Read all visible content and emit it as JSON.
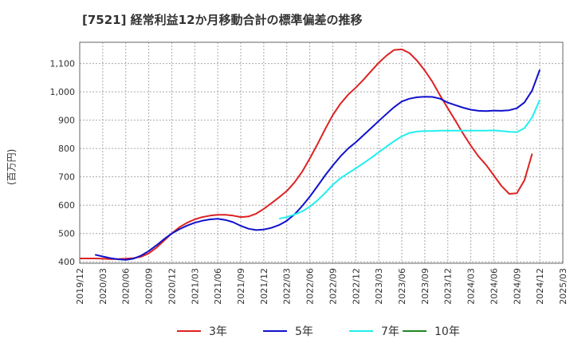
{
  "title": "[7521]  経常利益12か月移動合計の標準偏差の推移",
  "chart_data": {
    "type": "line",
    "ylabel": "(百万円)",
    "xlabel": "",
    "ylim": [
      395,
      1175
    ],
    "yticks": [
      400,
      500,
      600,
      700,
      800,
      900,
      1000,
      1100
    ],
    "ytick_labels": [
      "400",
      "500",
      "600",
      "700",
      "800",
      "900",
      "1,000",
      "1,100"
    ],
    "xticks": [
      "2019/12",
      "2020/03",
      "2020/06",
      "2020/09",
      "2020/12",
      "2021/03",
      "2021/06",
      "2021/09",
      "2021/12",
      "2022/03",
      "2022/06",
      "2022/09",
      "2022/12",
      "2023/03",
      "2023/06",
      "2023/09",
      "2023/12",
      "2024/03",
      "2024/06",
      "2024/09",
      "2024/12",
      "2025/03"
    ],
    "grid": true,
    "legend_position": "bottom",
    "series": [
      {
        "name": "3年",
        "color": "#dd2222",
        "points": [
          [
            "2019/12",
            412
          ],
          [
            "2020/01",
            412
          ],
          [
            "2020/02",
            412
          ],
          [
            "2020/03",
            411
          ],
          [
            "2020/04",
            410
          ],
          [
            "2020/05",
            410
          ],
          [
            "2020/06",
            411
          ],
          [
            "2020/07",
            413
          ],
          [
            "2020/08",
            418
          ],
          [
            "2020/09",
            430
          ],
          [
            "2020/10",
            450
          ],
          [
            "2020/11",
            475
          ],
          [
            "2020/12",
            500
          ],
          [
            "2021/01",
            522
          ],
          [
            "2021/02",
            538
          ],
          [
            "2021/03",
            550
          ],
          [
            "2021/04",
            558
          ],
          [
            "2021/05",
            563
          ],
          [
            "2021/06",
            566
          ],
          [
            "2021/07",
            566
          ],
          [
            "2021/08",
            563
          ],
          [
            "2021/09",
            558
          ],
          [
            "2021/10",
            560
          ],
          [
            "2021/11",
            570
          ],
          [
            "2021/12",
            587
          ],
          [
            "2022/01",
            607
          ],
          [
            "2022/02",
            628
          ],
          [
            "2022/03",
            650
          ],
          [
            "2022/04",
            680
          ],
          [
            "2022/05",
            718
          ],
          [
            "2022/06",
            765
          ],
          [
            "2022/07",
            815
          ],
          [
            "2022/08",
            868
          ],
          [
            "2022/09",
            918
          ],
          [
            "2022/10",
            958
          ],
          [
            "2022/11",
            990
          ],
          [
            "2022/12",
            1015
          ],
          [
            "2023/01",
            1043
          ],
          [
            "2023/02",
            1073
          ],
          [
            "2023/03",
            1103
          ],
          [
            "2023/04",
            1128
          ],
          [
            "2023/05",
            1148
          ],
          [
            "2023/06",
            1150
          ],
          [
            "2023/07",
            1137
          ],
          [
            "2023/08",
            1110
          ],
          [
            "2023/09",
            1075
          ],
          [
            "2023/10",
            1035
          ],
          [
            "2023/11",
            987
          ],
          [
            "2023/12",
            942
          ],
          [
            "2024/01",
            898
          ],
          [
            "2024/02",
            852
          ],
          [
            "2024/03",
            810
          ],
          [
            "2024/04",
            772
          ],
          [
            "2024/05",
            742
          ],
          [
            "2024/06",
            705
          ],
          [
            "2024/07",
            668
          ],
          [
            "2024/08",
            640
          ],
          [
            "2024/09",
            642
          ],
          [
            "2024/10",
            688
          ],
          [
            "2024/11",
            782
          ]
        ]
      },
      {
        "name": "5年",
        "color": "#1111cc",
        "points": [
          [
            "2020/02",
            425
          ],
          [
            "2020/03",
            419
          ],
          [
            "2020/04",
            413
          ],
          [
            "2020/05",
            409
          ],
          [
            "2020/06",
            407
          ],
          [
            "2020/07",
            411
          ],
          [
            "2020/08",
            422
          ],
          [
            "2020/09",
            438
          ],
          [
            "2020/10",
            458
          ],
          [
            "2020/11",
            480
          ],
          [
            "2020/12",
            500
          ],
          [
            "2021/01",
            515
          ],
          [
            "2021/02",
            528
          ],
          [
            "2021/03",
            538
          ],
          [
            "2021/04",
            545
          ],
          [
            "2021/05",
            550
          ],
          [
            "2021/06",
            552
          ],
          [
            "2021/07",
            548
          ],
          [
            "2021/08",
            540
          ],
          [
            "2021/09",
            527
          ],
          [
            "2021/10",
            517
          ],
          [
            "2021/11",
            512
          ],
          [
            "2021/12",
            514
          ],
          [
            "2022/01",
            520
          ],
          [
            "2022/02",
            530
          ],
          [
            "2022/03",
            545
          ],
          [
            "2022/04",
            567
          ],
          [
            "2022/05",
            597
          ],
          [
            "2022/06",
            630
          ],
          [
            "2022/07",
            667
          ],
          [
            "2022/08",
            705
          ],
          [
            "2022/09",
            740
          ],
          [
            "2022/10",
            772
          ],
          [
            "2022/11",
            800
          ],
          [
            "2022/12",
            822
          ],
          [
            "2023/01",
            847
          ],
          [
            "2023/02",
            872
          ],
          [
            "2023/03",
            897
          ],
          [
            "2023/04",
            922
          ],
          [
            "2023/05",
            946
          ],
          [
            "2023/06",
            966
          ],
          [
            "2023/07",
            976
          ],
          [
            "2023/08",
            981
          ],
          [
            "2023/09",
            983
          ],
          [
            "2023/10",
            982
          ],
          [
            "2023/11",
            976
          ],
          [
            "2023/12",
            962
          ],
          [
            "2024/01",
            953
          ],
          [
            "2024/02",
            944
          ],
          [
            "2024/03",
            937
          ],
          [
            "2024/04",
            933
          ],
          [
            "2024/05",
            932
          ],
          [
            "2024/06",
            934
          ],
          [
            "2024/07",
            933
          ],
          [
            "2024/08",
            935
          ],
          [
            "2024/09",
            942
          ],
          [
            "2024/10",
            963
          ],
          [
            "2024/11",
            1005
          ],
          [
            "2024/12",
            1078
          ]
        ]
      },
      {
        "name": "7年",
        "color": "#22eeee",
        "points": [
          [
            "2022/02",
            552
          ],
          [
            "2022/03",
            558
          ],
          [
            "2022/04",
            567
          ],
          [
            "2022/05",
            578
          ],
          [
            "2022/06",
            595
          ],
          [
            "2022/07",
            617
          ],
          [
            "2022/08",
            643
          ],
          [
            "2022/09",
            672
          ],
          [
            "2022/10",
            695
          ],
          [
            "2022/11",
            713
          ],
          [
            "2022/12",
            730
          ],
          [
            "2023/01",
            748
          ],
          [
            "2023/02",
            767
          ],
          [
            "2023/03",
            787
          ],
          [
            "2023/04",
            807
          ],
          [
            "2023/05",
            826
          ],
          [
            "2023/06",
            843
          ],
          [
            "2023/07",
            855
          ],
          [
            "2023/08",
            860
          ],
          [
            "2023/09",
            862
          ],
          [
            "2023/10",
            862
          ],
          [
            "2023/11",
            863
          ],
          [
            "2023/12",
            863
          ],
          [
            "2024/01",
            863
          ],
          [
            "2024/02",
            863
          ],
          [
            "2024/03",
            863
          ],
          [
            "2024/04",
            863
          ],
          [
            "2024/05",
            863
          ],
          [
            "2024/06",
            864
          ],
          [
            "2024/07",
            862
          ],
          [
            "2024/08",
            859
          ],
          [
            "2024/09",
            858
          ],
          [
            "2024/10",
            872
          ],
          [
            "2024/11",
            910
          ],
          [
            "2024/12",
            972
          ]
        ]
      },
      {
        "name": "10年",
        "color": "#228822",
        "points": []
      }
    ]
  }
}
